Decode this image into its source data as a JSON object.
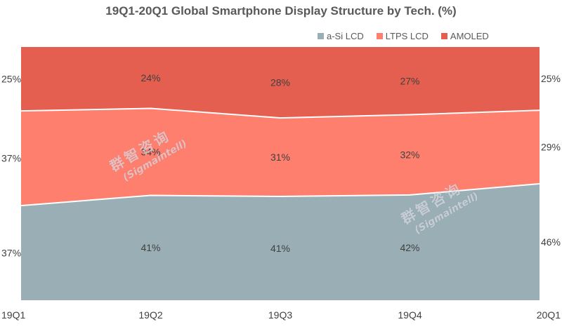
{
  "chart_data": {
    "type": "area",
    "stacked": true,
    "title": "19Q1-20Q1 Global Smartphone Display Structure by Tech. (%)",
    "categories": [
      "19Q1",
      "19Q2",
      "19Q3",
      "19Q4",
      "20Q1"
    ],
    "series": [
      {
        "name": "a-Si LCD",
        "color": "#9aafb5",
        "values": [
          37,
          41,
          41,
          42,
          46
        ],
        "labels": [
          "37%",
          "41%",
          "41%",
          "42%",
          "46%"
        ]
      },
      {
        "name": "LTPS LCD",
        "color": "#fe7f6e",
        "values": [
          37,
          34,
          31,
          32,
          29
        ],
        "labels": [
          "37%",
          "34%",
          "31%",
          "32%",
          "29%"
        ]
      },
      {
        "name": "AMOLED",
        "color": "#e45f4f",
        "values": [
          25,
          24,
          28,
          27,
          25
        ],
        "labels": [
          "25%",
          "24%",
          "28%",
          "27%",
          "25%"
        ]
      }
    ],
    "ylim": [
      0,
      100
    ],
    "legend_position": "top-right",
    "grid": false
  },
  "watermarks": [
    {
      "text_cn": "群智咨询",
      "text_en": "(Sigmaintell)"
    },
    {
      "text_cn": "群智咨询",
      "text_en": "(Sigmaintell)"
    }
  ]
}
